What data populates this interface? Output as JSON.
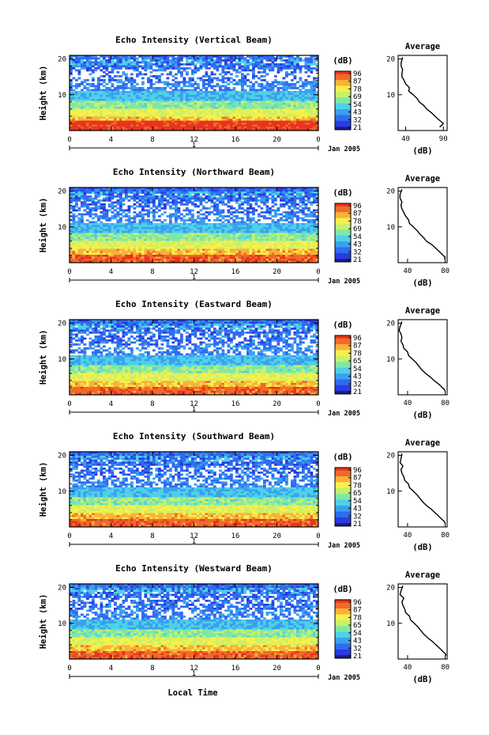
{
  "colors": {
    "colorbar": [
      "#1a1a8c",
      "#2a3ce0",
      "#2f6cf0",
      "#3aa0f0",
      "#4fd0e8",
      "#7ee8a8",
      "#c8f06a",
      "#f7f04a",
      "#f8b23a",
      "#f06a2a",
      "#e8341e"
    ]
  },
  "shared": {
    "xlabel": "Local Time",
    "date_label": "Jan 2005",
    "day_label": "1",
    "x_ticks": [
      "0",
      "4",
      "8",
      "12",
      "16",
      "20",
      "0"
    ],
    "ylabel": "Height (km)",
    "y_ticks": [
      "20",
      "10"
    ],
    "colorbar_unit": "(dB)",
    "avg_title": "Average",
    "avg_xlabel": "(dB)"
  },
  "chart_data": [
    {
      "type": "heatmap",
      "title": "Echo Intensity (Vertical Beam)",
      "colorbar_ticks": [
        "96",
        "87",
        "78",
        "69",
        "54",
        "43",
        "32",
        "21"
      ],
      "avg_xticks": [
        "40",
        "90"
      ],
      "average_profile": {
        "type": "line",
        "xlim": [
          30,
          95
        ],
        "ylim": [
          0,
          21
        ],
        "height_km": [
          20.5,
          19,
          18,
          17,
          16,
          15,
          14,
          13,
          12,
          11,
          10,
          9,
          8,
          7,
          6,
          5,
          4,
          3,
          2,
          1.5,
          1
        ],
        "db": [
          36,
          34,
          34,
          36,
          35,
          35,
          38,
          40,
          45,
          44,
          50,
          55,
          58,
          64,
          68,
          74,
          79,
          84,
          90,
          88,
          85
        ]
      }
    },
    {
      "type": "heatmap",
      "title": "Echo Intensity (Northward Beam)",
      "colorbar_ticks": [
        "96",
        "87",
        "78",
        "69",
        "54",
        "43",
        "32",
        "21"
      ],
      "avg_xticks": [
        "40",
        "80"
      ],
      "average_profile": {
        "type": "line",
        "xlim": [
          30,
          82
        ],
        "ylim": [
          0,
          21
        ],
        "height_km": [
          20.5,
          19,
          18,
          17,
          16,
          15,
          14,
          13,
          12,
          11,
          10,
          9,
          8,
          7,
          6,
          5,
          4,
          3,
          2,
          1.5,
          1
        ],
        "db": [
          34,
          32,
          32,
          34,
          33,
          34,
          36,
          38,
          41,
          42,
          46,
          50,
          53,
          57,
          60,
          66,
          70,
          74,
          78,
          80,
          79
        ]
      }
    },
    {
      "type": "heatmap",
      "title": "Echo Intensity (Eastward Beam)",
      "colorbar_ticks": [
        "96",
        "87",
        "78",
        "65",
        "54",
        "43",
        "32",
        "21"
      ],
      "avg_xticks": [
        "40",
        "80"
      ],
      "average_profile": {
        "type": "line",
        "xlim": [
          30,
          82
        ],
        "ylim": [
          0,
          21
        ],
        "height_km": [
          20.5,
          19,
          18,
          17,
          16,
          15,
          14,
          13,
          12,
          11,
          10,
          9,
          8,
          7,
          6,
          5,
          4,
          3,
          2,
          1.5,
          1
        ],
        "db": [
          34,
          32,
          31,
          33,
          34,
          33,
          35,
          36,
          40,
          41,
          45,
          49,
          52,
          55,
          59,
          64,
          68,
          73,
          77,
          79,
          80
        ]
      }
    },
    {
      "type": "heatmap",
      "title": "Echo Intensity (Southward Beam)",
      "colorbar_ticks": [
        "96",
        "87",
        "78",
        "65",
        "54",
        "43",
        "32",
        "21"
      ],
      "avg_xticks": [
        "40",
        "80"
      ],
      "average_profile": {
        "type": "line",
        "xlim": [
          30,
          82
        ],
        "ylim": [
          0,
          21
        ],
        "height_km": [
          20.5,
          19,
          18,
          17,
          16,
          15,
          14,
          13,
          12,
          11,
          10,
          9,
          8,
          7,
          6,
          5,
          4,
          3,
          2,
          1.5,
          1
        ],
        "db": [
          34,
          33,
          32,
          35,
          33,
          34,
          36,
          37,
          41,
          42,
          46,
          50,
          53,
          56,
          60,
          65,
          69,
          73,
          77,
          79,
          80
        ]
      }
    },
    {
      "type": "heatmap",
      "title": "Echo Intensity (Westward Beam)",
      "colorbar_ticks": [
        "96",
        "87",
        "78",
        "65",
        "54",
        "43",
        "32",
        "21"
      ],
      "avg_xticks": [
        "40",
        "80"
      ],
      "average_profile": {
        "type": "line",
        "xlim": [
          30,
          82
        ],
        "ylim": [
          0,
          21
        ],
        "height_km": [
          20.5,
          19,
          18,
          17,
          16,
          15,
          14,
          13,
          12,
          11,
          10,
          9,
          8,
          7,
          6,
          5,
          4,
          3,
          2,
          1.5,
          1
        ],
        "db": [
          35,
          33,
          32,
          36,
          34,
          35,
          37,
          38,
          42,
          43,
          47,
          51,
          54,
          57,
          61,
          66,
          70,
          74,
          78,
          80,
          81
        ]
      }
    }
  ]
}
